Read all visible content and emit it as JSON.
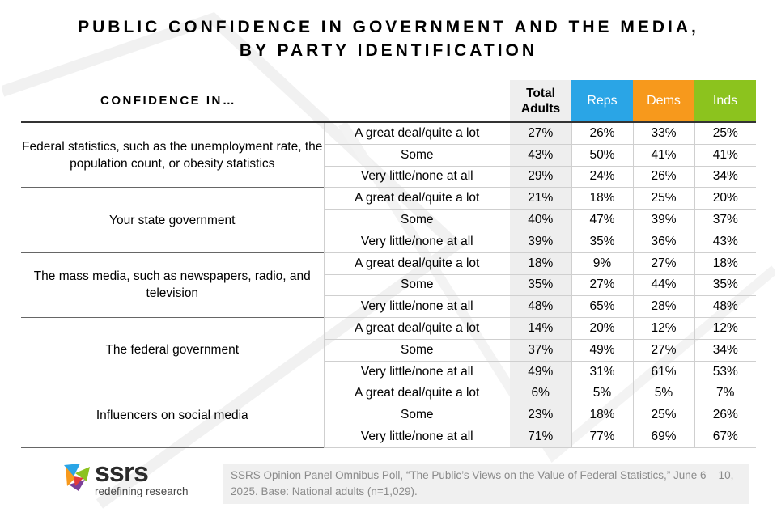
{
  "title_line1": "PUBLIC CONFIDENCE IN GOVERNMENT AND THE MEDIA,",
  "title_line2": "BY PARTY IDENTIFICATION",
  "chart_data": {
    "type": "table",
    "title": "PUBLIC CONFIDENCE IN GOVERNMENT AND THE MEDIA, BY PARTY IDENTIFICATION",
    "row_header": "CONFIDENCE IN…",
    "columns": [
      {
        "label": "Total Adults",
        "color": "#eeeeee"
      },
      {
        "label": "Reps",
        "color": "#2aa5e6"
      },
      {
        "label": "Dems",
        "color": "#f7991c"
      },
      {
        "label": "Inds",
        "color": "#8cc31e"
      }
    ],
    "groups": [
      {
        "topic": "Federal statistics, such as the unemployment rate, the population count, or obesity statistics",
        "rows": [
          {
            "response": "A great deal/quite a lot",
            "values": [
              "27%",
              "26%",
              "33%",
              "25%"
            ]
          },
          {
            "response": "Some",
            "values": [
              "43%",
              "50%",
              "41%",
              "41%"
            ]
          },
          {
            "response": "Very little/none at all",
            "values": [
              "29%",
              "24%",
              "26%",
              "34%"
            ]
          }
        ]
      },
      {
        "topic": "Your state government",
        "rows": [
          {
            "response": "A great deal/quite a lot",
            "values": [
              "21%",
              "18%",
              "25%",
              "20%"
            ]
          },
          {
            "response": "Some",
            "values": [
              "40%",
              "47%",
              "39%",
              "37%"
            ]
          },
          {
            "response": "Very little/none at all",
            "values": [
              "39%",
              "35%",
              "36%",
              "43%"
            ]
          }
        ]
      },
      {
        "topic": "The mass media, such as newspapers, radio, and television",
        "rows": [
          {
            "response": "A great deal/quite a lot",
            "values": [
              "18%",
              "9%",
              "27%",
              "18%"
            ]
          },
          {
            "response": "Some",
            "values": [
              "35%",
              "27%",
              "44%",
              "35%"
            ]
          },
          {
            "response": "Very little/none at all",
            "values": [
              "48%",
              "65%",
              "28%",
              "48%"
            ]
          }
        ]
      },
      {
        "topic": "The federal government",
        "rows": [
          {
            "response": "A great deal/quite a lot",
            "values": [
              "14%",
              "20%",
              "12%",
              "12%"
            ]
          },
          {
            "response": "Some",
            "values": [
              "37%",
              "49%",
              "27%",
              "34%"
            ]
          },
          {
            "response": "Very little/none at all",
            "values": [
              "49%",
              "31%",
              "61%",
              "53%"
            ]
          }
        ]
      },
      {
        "topic": "Influencers on social media",
        "rows": [
          {
            "response": "A great deal/quite a lot",
            "values": [
              "6%",
              "5%",
              "5%",
              "7%"
            ]
          },
          {
            "response": "Some",
            "values": [
              "23%",
              "18%",
              "25%",
              "26%"
            ]
          },
          {
            "response": "Very little/none at all",
            "values": [
              "71%",
              "77%",
              "69%",
              "67%"
            ]
          }
        ]
      }
    ]
  },
  "logo": {
    "wordmark": "ssrs",
    "tagline": "redefining research"
  },
  "source_note": "SSRS Opinion Panel Omnibus Poll, “The Public’s Views on the Value of Federal Statistics,” June 6 – 10, 2025. Base: National adults (n=1,029)."
}
